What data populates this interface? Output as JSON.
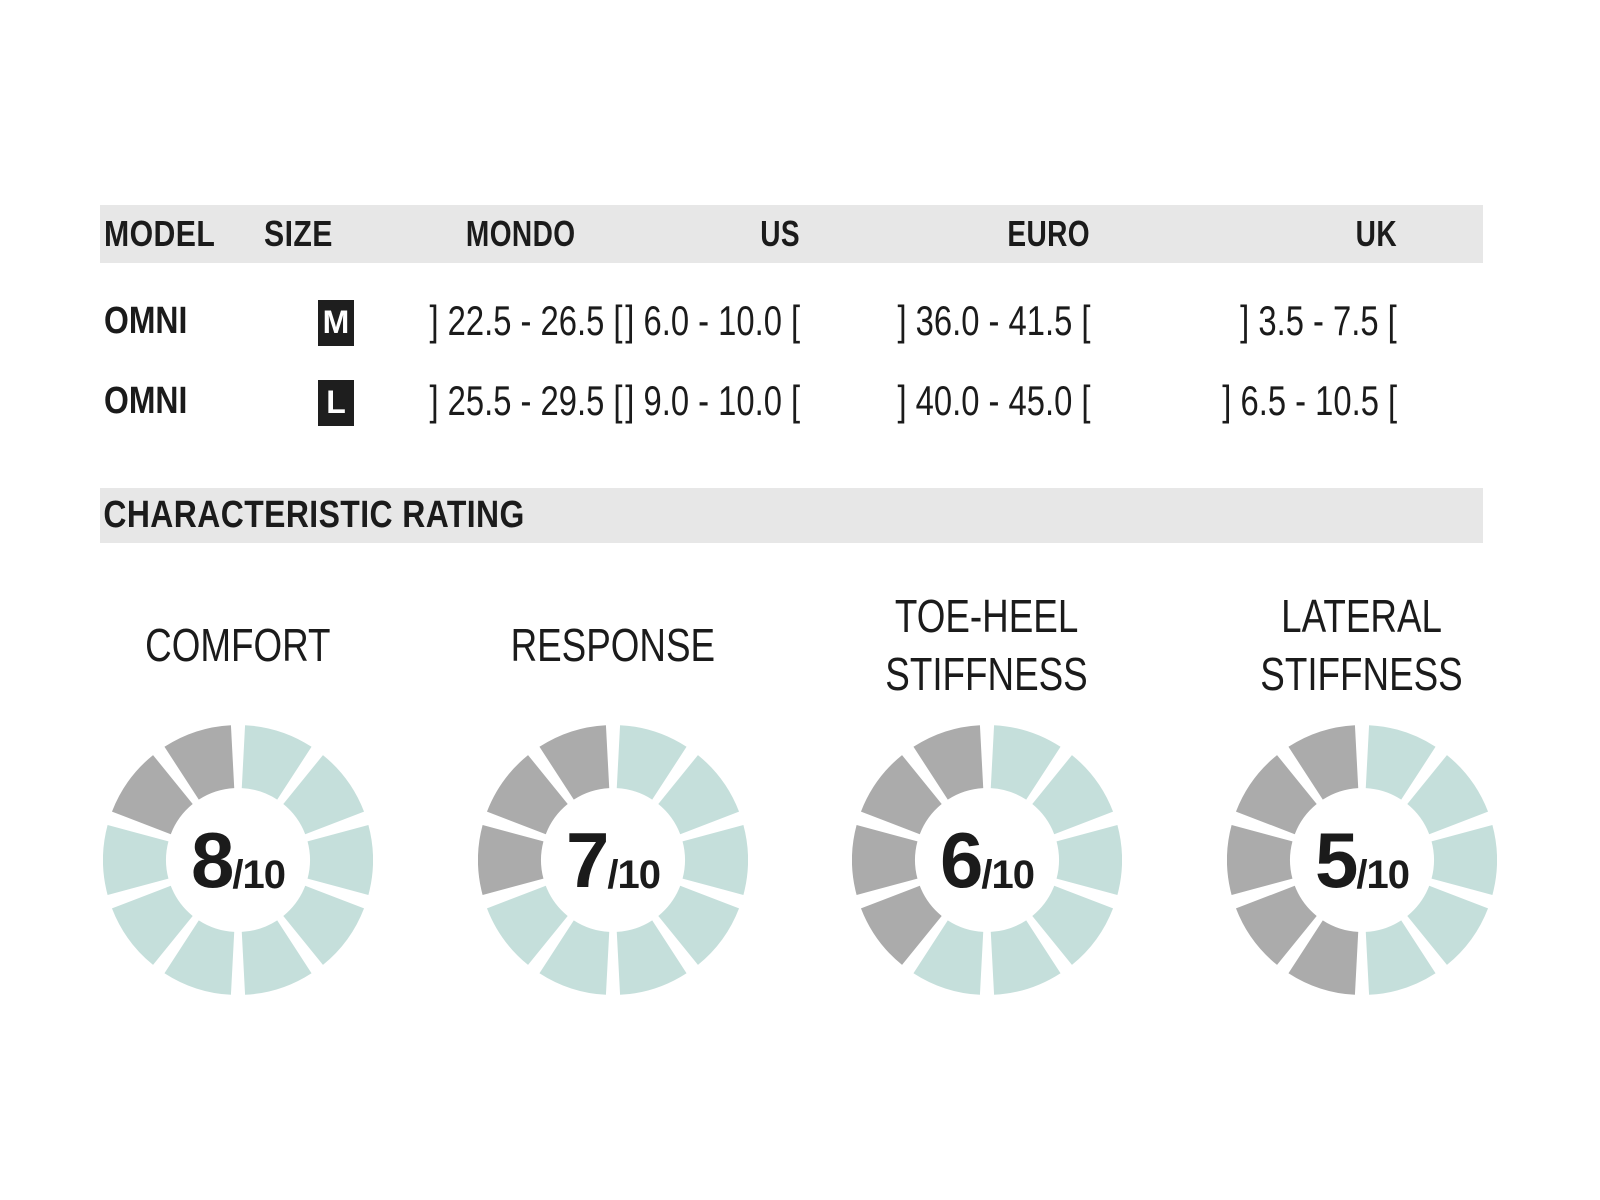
{
  "size_table": {
    "headers": [
      "MODEL",
      "SIZE",
      "MONDO",
      "US",
      "EURO",
      "UK"
    ],
    "rows": [
      {
        "model": "OMNI",
        "size": "M",
        "mondo": "] 22.5 - 26.5 [",
        "us": "] 6.0 - 10.0 [",
        "euro": "] 36.0 - 41.5 [",
        "uk": "] 3.5 - 7.5 ["
      },
      {
        "model": "OMNI",
        "size": "L",
        "mondo": "] 25.5 - 29.5 [",
        "us": "] 9.0 - 10.0 [",
        "euro": "] 40.0 - 45.0 [",
        "uk": "] 6.5 - 10.5 ["
      }
    ]
  },
  "rating_section": {
    "title": "CHARACTERISTIC RATING"
  },
  "ratings": [
    {
      "label_lines": [
        "COMFORT"
      ],
      "value": 8,
      "max": 10,
      "max_label": "/10",
      "segments": 10
    },
    {
      "label_lines": [
        "RESPONSE"
      ],
      "value": 7,
      "max": 10,
      "max_label": "/10",
      "segments": 10
    },
    {
      "label_lines": [
        "TOE-HEEL",
        "STIFFNESS"
      ],
      "value": 6,
      "max": 10,
      "max_label": "/10",
      "segments": 10
    },
    {
      "label_lines": [
        "LATERAL",
        "STIFFNESS"
      ],
      "value": 5,
      "max": 10,
      "max_label": "/10",
      "segments": 10
    }
  ],
  "colors": {
    "text": "#1b1b1b",
    "bar_background": "#e7e7e7",
    "segment_filled": "#c5dfdb",
    "segment_empty": "#ababab",
    "badge_background": "#1e1e1e",
    "badge_text": "#ffffff"
  },
  "chart_data": [
    {
      "type": "table",
      "title": "Size chart",
      "columns": [
        "MODEL",
        "SIZE",
        "MONDO",
        "US",
        "EURO",
        "UK"
      ],
      "rows": [
        [
          "OMNI",
          "M",
          "] 22.5 - 26.5 [",
          "] 6.0 - 10.0 [",
          "] 36.0 - 41.5 [",
          "] 3.5 - 7.5 ["
        ],
        [
          "OMNI",
          "L",
          "] 25.5 - 29.5 [",
          "] 9.0 - 10.0 [",
          "] 40.0 - 45.0 [",
          "] 6.5 - 10.5 ["
        ]
      ]
    },
    {
      "type": "pie",
      "variant": "segmented_donut",
      "title": "COMFORT",
      "value": 8,
      "max": 10,
      "segments": 10,
      "filled_color": "#c5dfdb",
      "empty_color": "#ababab",
      "fill_direction": "clockwise_from_top"
    },
    {
      "type": "pie",
      "variant": "segmented_donut",
      "title": "RESPONSE",
      "value": 7,
      "max": 10,
      "segments": 10,
      "filled_color": "#c5dfdb",
      "empty_color": "#ababab",
      "fill_direction": "clockwise_from_top"
    },
    {
      "type": "pie",
      "variant": "segmented_donut",
      "title": "TOE-HEEL STIFFNESS",
      "value": 6,
      "max": 10,
      "segments": 10,
      "filled_color": "#c5dfdb",
      "empty_color": "#ababab",
      "fill_direction": "clockwise_from_top"
    },
    {
      "type": "pie",
      "variant": "segmented_donut",
      "title": "LATERAL STIFFNESS",
      "value": 5,
      "max": 10,
      "segments": 10,
      "filled_color": "#c5dfdb",
      "empty_color": "#ababab",
      "fill_direction": "clockwise_from_top"
    }
  ]
}
